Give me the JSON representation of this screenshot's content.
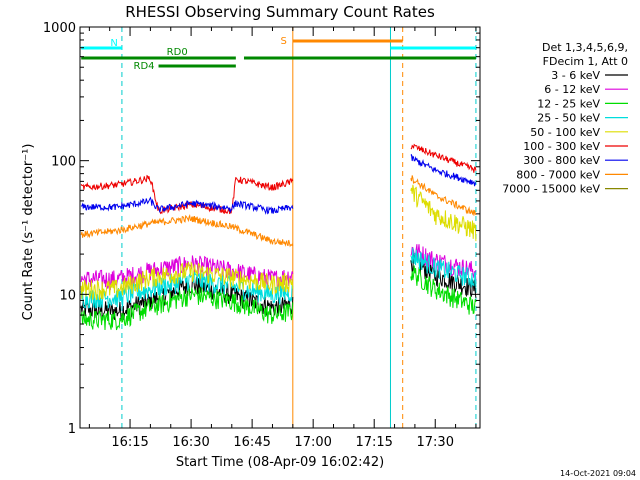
{
  "chart_data": {
    "type": "line",
    "title": "RHESSI Observing Summary Count Rates",
    "xlabel": "Start Time (08-Apr-09 16:02:42)",
    "ylabel": "Count Rate (s⁻¹ detector⁻¹)",
    "y_scale": "log",
    "ylim": [
      1,
      1000
    ],
    "xlim": [
      "16:02:42",
      "17:41:00"
    ],
    "x_ticks": [
      "16:15",
      "16:30",
      "16:45",
      "17:00",
      "17:15",
      "17:30"
    ],
    "y_ticks": [
      "1",
      "10",
      "100",
      "1000"
    ],
    "legend_header": [
      "Det 1,3,4,5,6,9,",
      "FDecim 1, Att 0"
    ],
    "legend_position": "right",
    "timestamp": "14-Oct-2021 09:04",
    "series": [
      {
        "name": "3 - 6 keV",
        "color": "#000000",
        "points": [
          [
            "16:03",
            7.8
          ],
          [
            "16:12",
            7.5
          ],
          [
            "16:20",
            9
          ],
          [
            "16:30",
            12
          ],
          [
            "16:40",
            10
          ],
          [
            "16:50",
            8
          ],
          [
            "16:55",
            8.5
          ]
        ],
        "points_after": [
          [
            "17:24",
            18
          ],
          [
            "17:30",
            14
          ],
          [
            "17:40",
            11
          ]
        ]
      },
      {
        "name": "6 - 12 keV",
        "color": "#dd00dd",
        "points": [
          [
            "16:03",
            13
          ],
          [
            "16:12",
            13
          ],
          [
            "16:20",
            15
          ],
          [
            "16:30",
            17
          ],
          [
            "16:40",
            15
          ],
          [
            "16:50",
            13
          ],
          [
            "16:55",
            14
          ]
        ],
        "points_after": [
          [
            "17:24",
            22
          ],
          [
            "17:30",
            18
          ],
          [
            "17:40",
            15
          ]
        ]
      },
      {
        "name": "12 - 25 keV",
        "color": "#00dd00",
        "points": [
          [
            "16:03",
            6.5
          ],
          [
            "16:12",
            6.5
          ],
          [
            "16:20",
            8
          ],
          [
            "16:30",
            10
          ],
          [
            "16:40",
            9
          ],
          [
            "16:50",
            7
          ],
          [
            "16:55",
            7.5
          ]
        ],
        "points_after": [
          [
            "17:24",
            15
          ],
          [
            "17:30",
            11
          ],
          [
            "17:40",
            8
          ]
        ]
      },
      {
        "name": "25 - 50 keV",
        "color": "#00dddd",
        "points": [
          [
            "16:03",
            9.5
          ],
          [
            "16:12",
            9.5
          ],
          [
            "16:20",
            11
          ],
          [
            "16:30",
            13
          ],
          [
            "16:40",
            11.5
          ],
          [
            "16:50",
            10
          ],
          [
            "16:55",
            10.5
          ]
        ],
        "points_after": [
          [
            "17:24",
            20
          ],
          [
            "17:30",
            16
          ],
          [
            "17:40",
            13
          ]
        ]
      },
      {
        "name": "50 - 100 keV",
        "color": "#dddd00",
        "points": [
          [
            "16:03",
            11
          ],
          [
            "16:12",
            11
          ],
          [
            "16:20",
            13.5
          ],
          [
            "16:30",
            15
          ],
          [
            "16:40",
            13.5
          ],
          [
            "16:50",
            12
          ],
          [
            "16:55",
            12.5
          ]
        ],
        "points_after": [
          [
            "17:24",
            60
          ],
          [
            "17:30",
            40
          ],
          [
            "17:40",
            30
          ]
        ]
      },
      {
        "name": "100 - 300 keV",
        "color": "#ee0000",
        "points": [
          [
            "16:03",
            63
          ],
          [
            "16:12",
            66
          ],
          [
            "16:20",
            74
          ],
          [
            "16:22",
            42
          ],
          [
            "16:30",
            47
          ],
          [
            "16:40",
            42
          ],
          [
            "16:41",
            73
          ],
          [
            "16:50",
            63
          ],
          [
            "16:55",
            70
          ]
        ],
        "points_after": [
          [
            "17:24",
            130
          ],
          [
            "17:30",
            110
          ],
          [
            "17:40",
            85
          ]
        ]
      },
      {
        "name": "300 - 800 keV",
        "color": "#0000ee",
        "points": [
          [
            "16:03",
            45
          ],
          [
            "16:12",
            45
          ],
          [
            "16:20",
            50
          ],
          [
            "16:22",
            43
          ],
          [
            "16:30",
            48
          ],
          [
            "16:40",
            44
          ],
          [
            "16:41",
            48
          ],
          [
            "16:50",
            42
          ],
          [
            "16:55",
            45
          ]
        ],
        "points_after": [
          [
            "17:24",
            105
          ],
          [
            "17:30",
            85
          ],
          [
            "17:40",
            68
          ]
        ]
      },
      {
        "name": "800 - 7000 keV",
        "color": "#ff8800",
        "points": [
          [
            "16:03",
            28
          ],
          [
            "16:12",
            30
          ],
          [
            "16:20",
            34
          ],
          [
            "16:30",
            37
          ],
          [
            "16:40",
            32
          ],
          [
            "16:50",
            25
          ],
          [
            "16:55",
            24
          ]
        ],
        "points_after": [
          [
            "17:24",
            75
          ],
          [
            "17:30",
            55
          ],
          [
            "17:40",
            40
          ]
        ]
      },
      {
        "name": "7000 - 15000 keV",
        "color": "#888800",
        "points": [],
        "points_after": []
      }
    ],
    "flag_bars": [
      {
        "label": "N",
        "color": "#00ffff",
        "segments": [
          [
            "16:03",
            "16:13"
          ],
          [
            "17:19",
            "17:40"
          ]
        ]
      },
      {
        "label": "S",
        "color": "#ff8800",
        "segments": [
          [
            "16:55",
            "17:22"
          ]
        ]
      },
      {
        "label": "RD0",
        "color": "#008800",
        "segments": [
          [
            "16:03",
            "16:41"
          ],
          [
            "16:43",
            "17:40"
          ]
        ]
      },
      {
        "label": "RD4",
        "color": "#008800",
        "segments": [
          [
            "16:22",
            "16:41"
          ]
        ]
      }
    ],
    "vertical_markers": [
      {
        "time": "16:13",
        "color": "#00cccc",
        "style": "dashed"
      },
      {
        "time": "16:55",
        "color": "#ff8800",
        "style": "solid"
      },
      {
        "time": "17:19",
        "color": "#00cccc",
        "style": "solid"
      },
      {
        "time": "17:22",
        "color": "#ff8800",
        "style": "dashed"
      },
      {
        "time": "17:40",
        "color": "#00cccc",
        "style": "dashed"
      }
    ]
  }
}
